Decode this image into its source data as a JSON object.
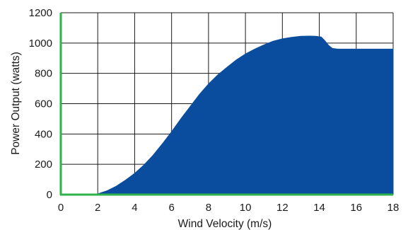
{
  "chart_data": {
    "type": "area",
    "xlabel": "Wind Velocity (m/s)",
    "ylabel": "Power Output (watts)",
    "xlim": [
      0,
      18
    ],
    "ylim": [
      0,
      1200
    ],
    "x_ticks": [
      0,
      2,
      4,
      6,
      8,
      10,
      12,
      14,
      16,
      18
    ],
    "y_ticks": [
      0,
      200,
      400,
      600,
      800,
      1000,
      1200
    ],
    "grid": true,
    "legend": "none",
    "series": [
      {
        "x": [
          0,
          1.7,
          2,
          2.5,
          3,
          3.5,
          4,
          4.5,
          5,
          5.5,
          6,
          6.5,
          7,
          7.5,
          8,
          8.5,
          9,
          9.5,
          10,
          10.5,
          11,
          11.5,
          12,
          12.5,
          13,
          13.5,
          13.8,
          14.1,
          14.3,
          14.5,
          14.7,
          15,
          16,
          17,
          18
        ],
        "y": [
          0,
          0,
          5,
          25,
          55,
          95,
          140,
          195,
          260,
          335,
          415,
          500,
          580,
          660,
          730,
          790,
          840,
          888,
          928,
          960,
          988,
          1012,
          1028,
          1038,
          1045,
          1046,
          1045,
          1040,
          1015,
          985,
          965,
          960,
          960,
          960,
          960
        ]
      }
    ],
    "colors": {
      "area_fill": "#0a4c9e",
      "axis_line": "#2db34a",
      "grid_line": "#1a1a1a"
    }
  }
}
